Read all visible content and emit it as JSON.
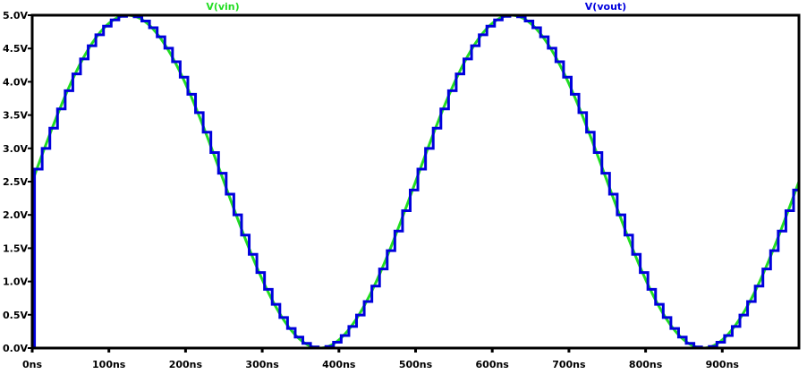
{
  "chart_data": {
    "type": "line",
    "title": "",
    "xlabel": "",
    "ylabel": "",
    "xlim": [
      0,
      1000
    ],
    "ylim": [
      0,
      5
    ],
    "x_unit": "ns",
    "y_unit": "V",
    "x_ticks": [
      "0ns",
      "100ns",
      "200ns",
      "300ns",
      "400ns",
      "500ns",
      "600ns",
      "700ns",
      "800ns",
      "900ns"
    ],
    "y_ticks": [
      "0.0V",
      "0.5V",
      "1.0V",
      "1.5V",
      "2.0V",
      "2.5V",
      "3.0V",
      "3.5V",
      "4.0V",
      "4.5V",
      "5.0V"
    ],
    "grid": false,
    "legend_position": "top",
    "series": [
      {
        "name": "V(vin)",
        "color": "#22dd22",
        "shape": "sine",
        "offset": 2.5,
        "amplitude": 2.5,
        "frequency_MHz": 2,
        "period_ns": 500,
        "sample_points": [
          {
            "t": 0,
            "v": 2.5
          },
          {
            "t": 125,
            "v": 5.0
          },
          {
            "t": 250,
            "v": 2.5
          },
          {
            "t": 375,
            "v": 0.0
          },
          {
            "t": 500,
            "v": 2.5
          },
          {
            "t": 625,
            "v": 5.0
          },
          {
            "t": 750,
            "v": 2.5
          },
          {
            "t": 875,
            "v": 0.0
          },
          {
            "t": 1000,
            "v": 2.5
          }
        ]
      },
      {
        "name": "V(vout)",
        "color": "#0000dd",
        "shape": "sample-and-hold of V(vin)",
        "initial_value": 0.0,
        "first_sample_ns": 3,
        "sample_period_ns": 10
      }
    ]
  },
  "legend": {
    "vin_label": "V(vin)",
    "vout_label": "V(vout)"
  }
}
